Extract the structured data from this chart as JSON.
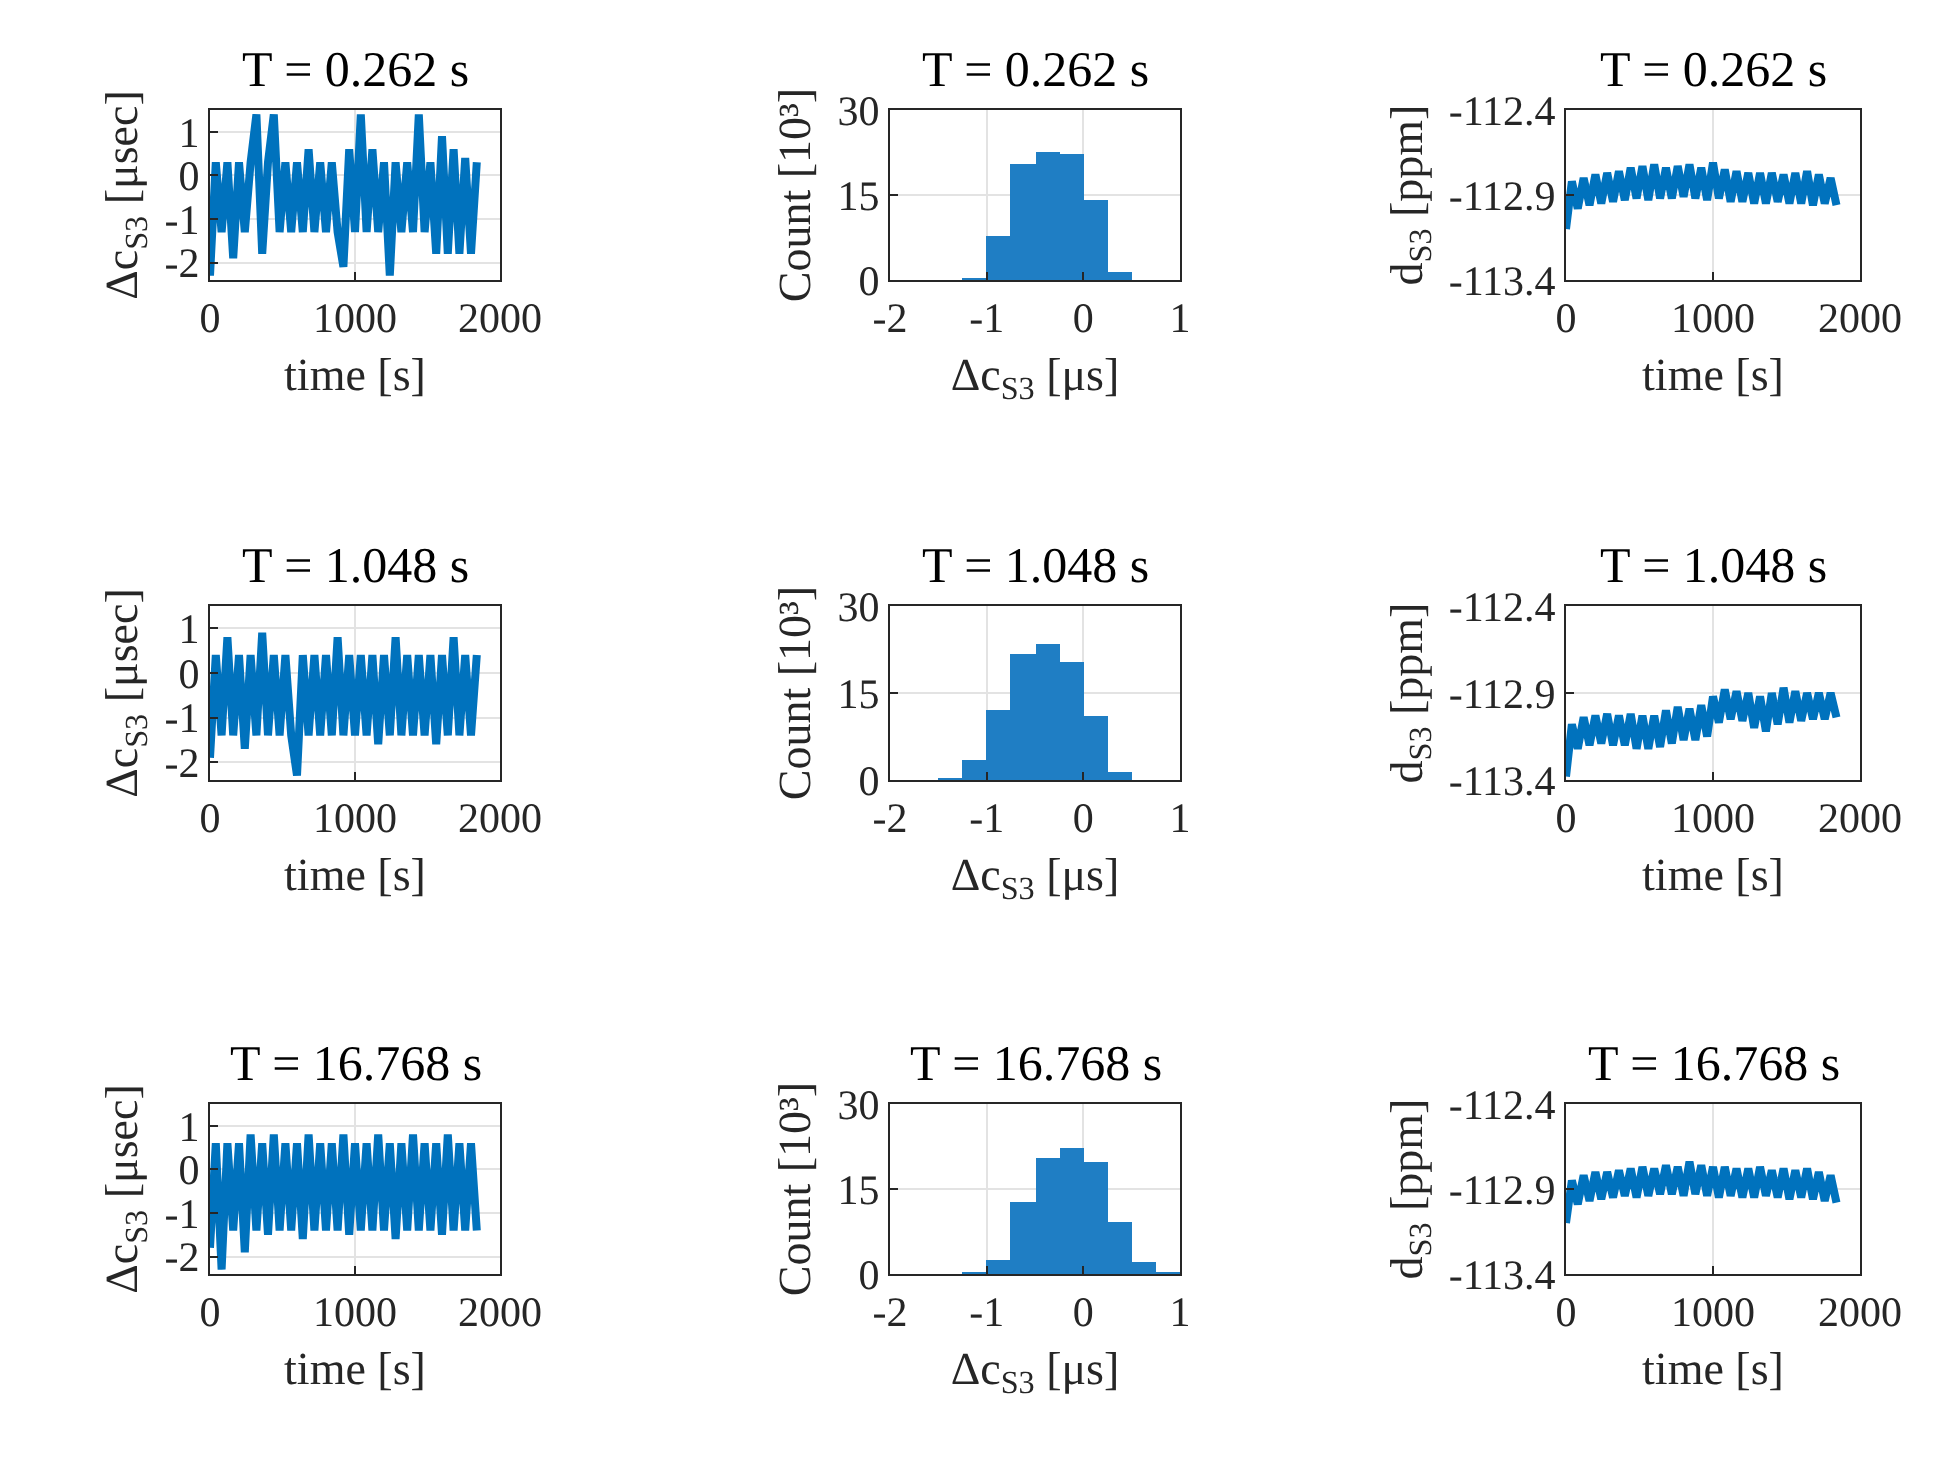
{
  "chart_data": [
    {
      "type": "line",
      "title": "T = 0.262 s",
      "xlabel": "time [s]",
      "ylabel": "Δc$_{S3}$ [μsec]",
      "xlim": [
        0,
        2000
      ],
      "xticks": [
        0,
        1000,
        2000
      ],
      "ylim": [
        -2.4,
        1.5
      ],
      "yticks": [
        -2,
        -1,
        0,
        1
      ],
      "grid": true,
      "series": [
        {
          "color": "#0072bd",
          "x": [
            0,
            40,
            80,
            120,
            160,
            200,
            240,
            280,
            320,
            360,
            400,
            440,
            480,
            520,
            560,
            600,
            640,
            680,
            720,
            760,
            800,
            840,
            880,
            920,
            960,
            1000,
            1040,
            1080,
            1120,
            1160,
            1200,
            1240,
            1280,
            1320,
            1360,
            1400,
            1440,
            1480,
            1520,
            1560,
            1600,
            1640,
            1680,
            1720,
            1760,
            1800,
            1840
          ],
          "values": [
            -2.3,
            0.3,
            -1.3,
            0.3,
            -1.9,
            0.3,
            -1.3,
            0.3,
            1.4,
            -1.8,
            0.3,
            1.4,
            -1.3,
            0.3,
            -1.3,
            0.3,
            -1.3,
            0.6,
            -1.3,
            0.3,
            -1.3,
            0.3,
            -1.3,
            -2.1,
            0.6,
            -1.3,
            1.4,
            -1.3,
            0.6,
            -1.3,
            0.3,
            -2.3,
            0.3,
            -1.3,
            0.3,
            -1.3,
            1.4,
            -1.3,
            0.3,
            -1.8,
            0.9,
            -1.8,
            0.6,
            -1.8,
            0.4,
            -1.8,
            0.3
          ]
        }
      ]
    },
    {
      "type": "histogram",
      "title": "T = 0.262 s",
      "xlabel": "Δc$_{S3}$ [μs]",
      "ylabel": "Count [10³]",
      "xlim": [
        -2,
        1
      ],
      "xticks": [
        -2,
        -1,
        0,
        1
      ],
      "ylim": [
        0,
        30
      ],
      "yticks": [
        0,
        15,
        30
      ],
      "grid": true,
      "color": "#1f7ec4",
      "bins": [
        -1.25,
        -1,
        -0.75,
        -0.5,
        -0.25,
        0,
        0.25,
        0.5
      ],
      "values": [
        0.2,
        7.6,
        20.6,
        22.6,
        22.4,
        14.1,
        1.4
      ]
    },
    {
      "type": "line",
      "title": "T = 0.262 s",
      "xlabel": "time [s]",
      "ylabel": "d$_{S3}$ [ppm]",
      "xlim": [
        0,
        2000
      ],
      "xticks": [
        0,
        1000,
        2000
      ],
      "ylim": [
        -113.4,
        -112.4
      ],
      "yticks": [
        -113.4,
        -112.9,
        -112.4
      ],
      "grid": true,
      "series": [
        {
          "color": "#0072bd",
          "x": [
            0,
            40,
            80,
            120,
            160,
            200,
            240,
            280,
            320,
            360,
            400,
            440,
            480,
            520,
            560,
            600,
            640,
            680,
            720,
            760,
            800,
            840,
            880,
            920,
            960,
            1000,
            1040,
            1080,
            1120,
            1160,
            1200,
            1240,
            1280,
            1320,
            1360,
            1400,
            1440,
            1480,
            1520,
            1560,
            1600,
            1640,
            1680,
            1720,
            1760,
            1800,
            1840
          ],
          "values": [
            -113.1,
            -112.82,
            -112.98,
            -112.8,
            -112.96,
            -112.78,
            -112.95,
            -112.77,
            -112.94,
            -112.76,
            -112.93,
            -112.74,
            -112.92,
            -112.73,
            -112.93,
            -112.72,
            -112.92,
            -112.74,
            -112.92,
            -112.73,
            -112.91,
            -112.72,
            -112.92,
            -112.74,
            -112.93,
            -112.71,
            -112.92,
            -112.75,
            -112.94,
            -112.76,
            -112.94,
            -112.77,
            -112.95,
            -112.77,
            -112.95,
            -112.77,
            -112.94,
            -112.78,
            -112.95,
            -112.77,
            -112.95,
            -112.76,
            -112.96,
            -112.78,
            -112.95,
            -112.8,
            -112.96
          ]
        }
      ]
    },
    {
      "type": "line",
      "title": "T = 1.048 s",
      "xlabel": "time [s]",
      "ylabel": "Δc$_{S3}$ [μsec]",
      "xlim": [
        0,
        2000
      ],
      "xticks": [
        0,
        1000,
        2000
      ],
      "ylim": [
        -2.4,
        1.5
      ],
      "yticks": [
        -2,
        -1,
        0,
        1
      ],
      "grid": true,
      "series": [
        {
          "color": "#0072bd",
          "x": [
            0,
            40,
            80,
            120,
            160,
            200,
            240,
            280,
            320,
            360,
            400,
            440,
            480,
            520,
            560,
            600,
            640,
            680,
            720,
            760,
            800,
            840,
            880,
            920,
            960,
            1000,
            1040,
            1080,
            1120,
            1160,
            1200,
            1240,
            1280,
            1320,
            1360,
            1400,
            1440,
            1480,
            1520,
            1560,
            1600,
            1640,
            1680,
            1720,
            1760,
            1800,
            1840
          ],
          "values": [
            -1.9,
            0.4,
            -1.4,
            0.8,
            -1.4,
            0.4,
            -1.7,
            0.4,
            -1.4,
            0.9,
            -1.4,
            0.4,
            -1.4,
            0.4,
            -1.4,
            -2.3,
            0.4,
            -1.4,
            0.4,
            -1.4,
            0.4,
            -1.4,
            0.8,
            -1.4,
            0.4,
            -1.4,
            0.4,
            -1.4,
            0.4,
            -1.6,
            0.4,
            -1.4,
            0.8,
            -1.4,
            0.4,
            -1.4,
            0.4,
            -1.4,
            0.4,
            -1.6,
            0.4,
            -1.4,
            0.8,
            -1.4,
            0.4,
            -1.4,
            0.4
          ]
        }
      ]
    },
    {
      "type": "histogram",
      "title": "T = 1.048 s",
      "xlabel": "Δc$_{S3}$ [μs]",
      "ylabel": "Count [10³]",
      "xlim": [
        -2,
        1
      ],
      "xticks": [
        -2,
        -1,
        0,
        1
      ],
      "ylim": [
        0,
        30
      ],
      "yticks": [
        0,
        15,
        30
      ],
      "grid": true,
      "color": "#1f7ec4",
      "bins": [
        -1.5,
        -1.25,
        -1,
        -0.75,
        -0.5,
        -0.25,
        0,
        0.25,
        0.5
      ],
      "values": [
        0.1,
        3.5,
        12.2,
        21.6,
        23.3,
        20.5,
        11.2,
        1.5
      ]
    },
    {
      "type": "line",
      "title": "T = 1.048 s",
      "xlabel": "time [s]",
      "ylabel": "d$_{S3}$ [ppm]",
      "xlim": [
        0,
        2000
      ],
      "xticks": [
        0,
        1000,
        2000
      ],
      "ylim": [
        -113.4,
        -112.4
      ],
      "yticks": [
        -113.4,
        -112.9,
        -112.4
      ],
      "grid": true,
      "series": [
        {
          "color": "#0072bd",
          "x": [
            0,
            40,
            80,
            120,
            160,
            200,
            240,
            280,
            320,
            360,
            400,
            440,
            480,
            520,
            560,
            600,
            640,
            680,
            720,
            760,
            800,
            840,
            880,
            920,
            960,
            1000,
            1040,
            1080,
            1120,
            1160,
            1200,
            1240,
            1280,
            1320,
            1360,
            1400,
            1440,
            1480,
            1520,
            1560,
            1600,
            1640,
            1680,
            1720,
            1760,
            1800,
            1840
          ],
          "values": [
            -113.38,
            -113.08,
            -113.22,
            -113.04,
            -113.2,
            -113.03,
            -113.19,
            -113.02,
            -113.2,
            -113.03,
            -113.2,
            -113.02,
            -113.22,
            -113.03,
            -113.22,
            -113.03,
            -113.21,
            -113.0,
            -113.19,
            -112.98,
            -113.17,
            -112.99,
            -113.17,
            -112.97,
            -113.15,
            -112.92,
            -113.07,
            -112.88,
            -113.05,
            -112.89,
            -113.06,
            -112.9,
            -113.1,
            -112.92,
            -113.12,
            -112.9,
            -113.08,
            -112.87,
            -113.07,
            -112.89,
            -113.06,
            -112.9,
            -113.05,
            -112.9,
            -113.05,
            -112.9,
            -113.04
          ]
        }
      ]
    },
    {
      "type": "line",
      "title": "T = 16.768 s",
      "xlabel": "time [s]",
      "ylabel": "Δc$_{S3}$ [μsec]",
      "xlim": [
        0,
        2000
      ],
      "xticks": [
        0,
        1000,
        2000
      ],
      "ylim": [
        -2.4,
        1.5
      ],
      "yticks": [
        -2,
        -1,
        0,
        1
      ],
      "grid": true,
      "series": [
        {
          "color": "#0072bd",
          "x": [
            0,
            40,
            80,
            120,
            160,
            200,
            240,
            280,
            320,
            360,
            400,
            440,
            480,
            520,
            560,
            600,
            640,
            680,
            720,
            760,
            800,
            840,
            880,
            920,
            960,
            1000,
            1040,
            1080,
            1120,
            1160,
            1200,
            1240,
            1280,
            1320,
            1360,
            1400,
            1440,
            1480,
            1520,
            1560,
            1600,
            1640,
            1680,
            1720,
            1760,
            1800,
            1840
          ],
          "values": [
            -1.8,
            0.6,
            -2.3,
            0.6,
            -1.4,
            0.6,
            -1.9,
            0.8,
            -1.4,
            0.6,
            -1.5,
            0.8,
            -1.4,
            0.6,
            -1.4,
            0.6,
            -1.6,
            0.8,
            -1.4,
            0.6,
            -1.4,
            0.6,
            -1.4,
            0.8,
            -1.5,
            0.6,
            -1.4,
            0.6,
            -1.4,
            0.8,
            -1.4,
            0.6,
            -1.6,
            0.6,
            -1.4,
            0.8,
            -1.4,
            0.6,
            -1.4,
            0.6,
            -1.5,
            0.8,
            -1.4,
            0.6,
            -1.4,
            0.6,
            -1.4
          ]
        }
      ]
    },
    {
      "type": "histogram",
      "title": "T = 16.768 s",
      "xlabel": "Δc$_{S3}$ [μs]",
      "ylabel": "Count [10³]",
      "xlim": [
        -2,
        1
      ],
      "xticks": [
        -2,
        -1,
        0,
        1
      ],
      "ylim": [
        0,
        30
      ],
      "yticks": [
        0,
        15,
        30
      ],
      "grid": true,
      "color": "#1f7ec4",
      "bins": [
        -1.25,
        -1,
        -0.75,
        -0.5,
        -0.25,
        0,
        0.25,
        0.5,
        0.75,
        1
      ],
      "values": [
        0.1,
        2.3,
        12.7,
        20.5,
        22.2,
        19.9,
        9.1,
        2.0,
        0.1
      ]
    },
    {
      "type": "line",
      "title": "T = 16.768 s",
      "xlabel": "time [s]",
      "ylabel": "d$_{S3}$ [ppm]",
      "xlim": [
        0,
        2000
      ],
      "xticks": [
        0,
        1000,
        2000
      ],
      "ylim": [
        -113.4,
        -112.4
      ],
      "yticks": [
        -113.4,
        -112.9,
        -112.4
      ],
      "grid": true,
      "series": [
        {
          "color": "#0072bd",
          "x": [
            0,
            40,
            80,
            120,
            160,
            200,
            240,
            280,
            320,
            360,
            400,
            440,
            480,
            520,
            560,
            600,
            640,
            680,
            720,
            760,
            800,
            840,
            880,
            920,
            960,
            1000,
            1040,
            1080,
            1120,
            1160,
            1200,
            1240,
            1280,
            1320,
            1360,
            1400,
            1440,
            1480,
            1520,
            1560,
            1600,
            1640,
            1680,
            1720,
            1760,
            1800,
            1840
          ],
          "values": [
            -113.1,
            -112.85,
            -112.99,
            -112.82,
            -112.97,
            -112.8,
            -112.96,
            -112.8,
            -112.95,
            -112.79,
            -112.94,
            -112.78,
            -112.95,
            -112.77,
            -112.94,
            -112.78,
            -112.93,
            -112.76,
            -112.93,
            -112.77,
            -112.94,
            -112.74,
            -112.93,
            -112.76,
            -112.94,
            -112.77,
            -112.95,
            -112.77,
            -112.94,
            -112.78,
            -112.95,
            -112.78,
            -112.95,
            -112.77,
            -112.94,
            -112.79,
            -112.95,
            -112.78,
            -112.96,
            -112.79,
            -112.95,
            -112.78,
            -112.96,
            -112.8,
            -112.97,
            -112.82,
            -112.98
          ]
        }
      ]
    }
  ]
}
